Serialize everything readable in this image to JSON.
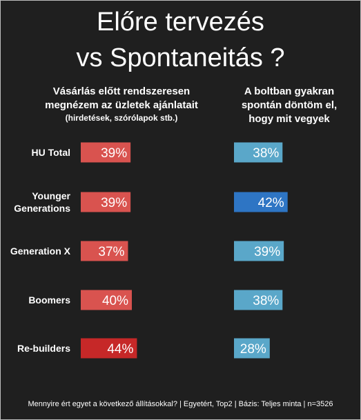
{
  "title_line1": "Előre tervezés",
  "title_line2": "vs Spontaneitás ?",
  "left_header": {
    "line1": "Vásárlás előtt rendszeresen",
    "line2": "megnézem az üzletek ajánlatait",
    "line3": "(hirdetések, szórólapok stb.)"
  },
  "right_header": {
    "line1": "A boltban gyakran",
    "line2": "spontán döntöm el,",
    "line3": "hogy mit vegyek"
  },
  "footer": "Mennyire ért egyet a következő állításokkal? | Egyetért, Top2 | Bázis: Teljes minta | n=3526",
  "chart_data": {
    "type": "bar",
    "categories": [
      "HU Total",
      "Younger Generations",
      "Generation X",
      "Boomers",
      "Re-builders"
    ],
    "category_lines": [
      [
        "HU Total"
      ],
      [
        "Younger",
        "Generations"
      ],
      [
        "Generation X"
      ],
      [
        "Boomers"
      ],
      [
        "Re-builders"
      ]
    ],
    "series": [
      {
        "values": [
          39,
          39,
          37,
          40,
          44
        ],
        "labels": [
          "39%",
          "39%",
          "37%",
          "40%",
          "44%"
        ],
        "colors": [
          "#d9534f",
          "#d9534f",
          "#d9534f",
          "#d9534f",
          "#c62828"
        ]
      },
      {
        "values": [
          38,
          42,
          39,
          38,
          28
        ],
        "labels": [
          "38%",
          "42%",
          "39%",
          "38%",
          "28%"
        ],
        "colors": [
          "#5aa7c9",
          "#2e75c4",
          "#5aa7c9",
          "#5aa7c9",
          "#5aa7c9"
        ]
      }
    ],
    "unit": "%"
  }
}
